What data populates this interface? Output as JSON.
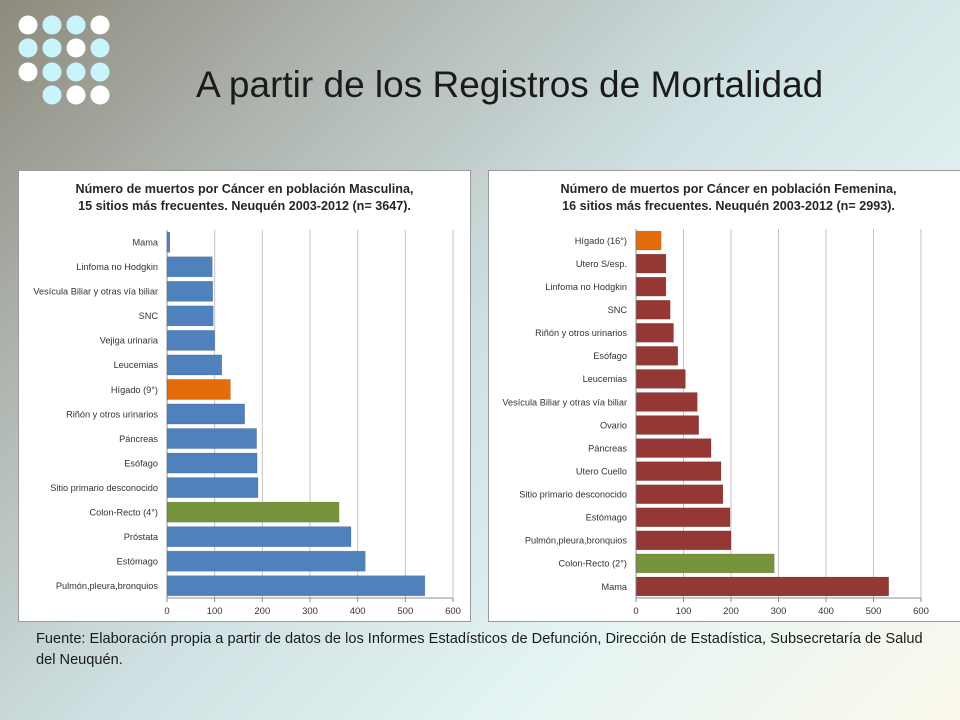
{
  "slide": {
    "title": "A partir de los Registros de Mortalidad",
    "source_note": "Fuente: Elaboración propia a partir de datos de los Informes Estadísticos de Defunción, Dirección de Estadística, Subsecretaría de Salud del Neuquén."
  },
  "colors": {
    "male_bar": "#4f81bd",
    "female_bar": "#953735",
    "highlight_liver": "#e46c0a",
    "highlight_colorectal": "#77933c",
    "decor_dot_white": "#ffffff",
    "decor_dot_cyan": "#c9f4fb"
  },
  "chart_data": [
    {
      "type": "bar",
      "orientation": "horizontal",
      "title_line1": "Número de muertos por Cáncer en población Masculina,",
      "title_line2": "15 sitios más frecuentes. Neuquén 2003-2012 (n= 3647).",
      "xlabel": "",
      "ylabel": "",
      "xlim": [
        0,
        600
      ],
      "xticks": [
        0,
        100,
        200,
        300,
        400,
        500,
        600
      ],
      "grid": true,
      "legend": "none",
      "categories": [
        "Mama",
        "Linfoma no Hodgkin",
        "Vesícula Biliar y otras vía biliar",
        "SNC",
        "Vejiga urinaria",
        "Leucemias",
        "Hígado (9°)",
        "Riñón y otros urinarios",
        "Páncreas",
        "Esófago",
        "Sitio primario desconocido",
        "Colon-Recto (4°)",
        "Próstata",
        "Estómago",
        "Pulmón,pleura,bronquios"
      ],
      "values": [
        6,
        95,
        96,
        97,
        100,
        115,
        133,
        163,
        188,
        189,
        191,
        361,
        386,
        416,
        541
      ],
      "highlights": {
        "Hígado (9°)": "highlight_liver",
        "Colon-Recto (4°)": "highlight_colorectal"
      }
    },
    {
      "type": "bar",
      "orientation": "horizontal",
      "title_line1": "Número de muertos por Cáncer en población Femenina,",
      "title_line2": "16 sitios más frecuentes. Neuquén 2003-2012 (n= 2993).",
      "xlabel": "",
      "ylabel": "",
      "xlim": [
        0,
        600
      ],
      "xticks": [
        0,
        100,
        200,
        300,
        400,
        500,
        600
      ],
      "grid": true,
      "legend": "none",
      "categories": [
        "Hígado (16°)",
        "Utero S/esp.",
        "Linfoma no Hodgkin",
        "SNC",
        "Riñón y otros urinarios",
        "Esófago",
        "Leucemias",
        "Vesícula Biliar y otras vía biliar",
        "Ovario",
        "Páncreas",
        "Utero Cuello",
        "Sitio primario desconocido",
        "Estómago",
        "Pulmón,pleura,bronquios",
        "Colon-Recto (2°)",
        "Mama"
      ],
      "values": [
        53,
        63,
        63,
        72,
        79,
        88,
        104,
        129,
        132,
        158,
        179,
        183,
        198,
        200,
        291,
        532
      ],
      "highlights": {
        "Hígado (16°)": "highlight_liver",
        "Colon-Recto (2°)": "highlight_colorectal"
      }
    }
  ]
}
